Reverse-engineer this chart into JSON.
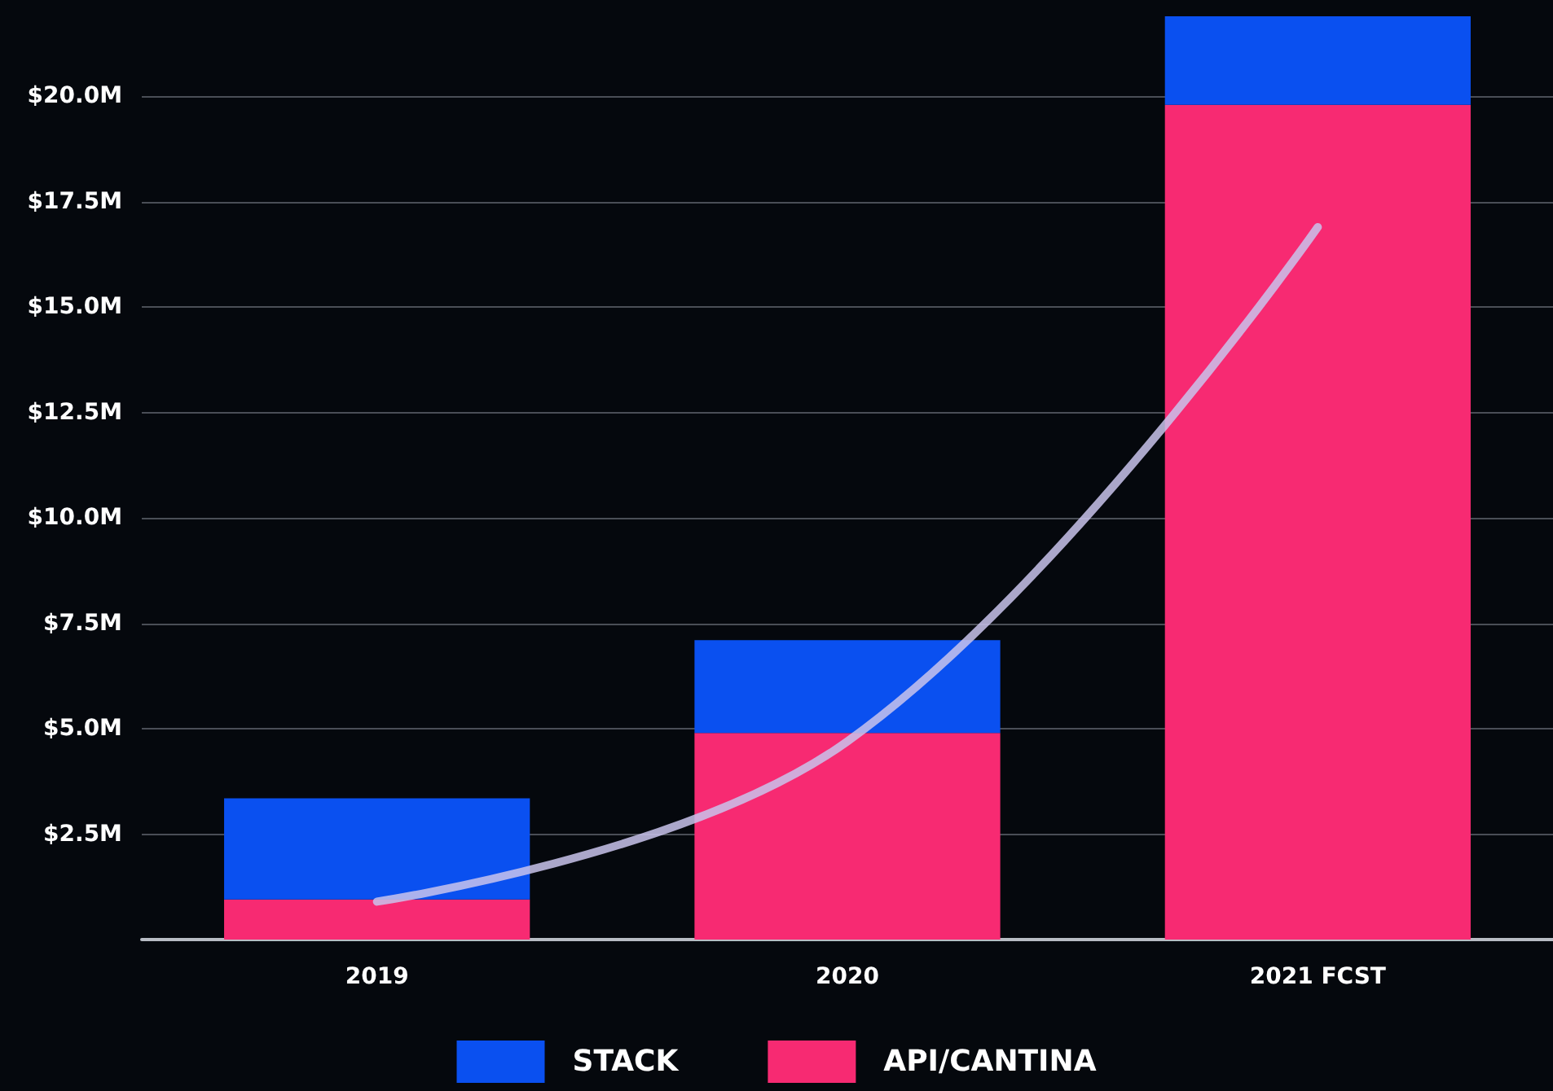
{
  "chart_data": {
    "type": "bar",
    "stacked": true,
    "categories": [
      "2019",
      "2020",
      "2021 FCST"
    ],
    "series": [
      {
        "name": "API/CANTINA",
        "color": "#f72a72",
        "values": [
          0.95,
          4.9,
          19.8
        ]
      },
      {
        "name": "STACK",
        "color": "#0a50f0",
        "values": [
          2.4,
          2.2,
          2.1
        ]
      },
      {
        "type": "line",
        "color": "#c9c3ec",
        "values": [
          0.9,
          4.7,
          16.9
        ]
      }
    ],
    "ylim": [
      0,
      21.9
    ],
    "yticks": [
      {
        "value": 2.5,
        "label": "$2.5M"
      },
      {
        "value": 5,
        "label": "$5.0M"
      },
      {
        "value": 7.5,
        "label": "$7.5M"
      },
      {
        "value": 10,
        "label": "$10.0M"
      },
      {
        "value": 12.5,
        "label": "$12.5M"
      },
      {
        "value": 15,
        "label": "$15.0M"
      },
      {
        "value": 17.5,
        "label": "$17.5M"
      },
      {
        "value": 20,
        "label": "$20.0M"
      }
    ],
    "grid": "y",
    "legend": "bottom",
    "marker": "none"
  }
}
